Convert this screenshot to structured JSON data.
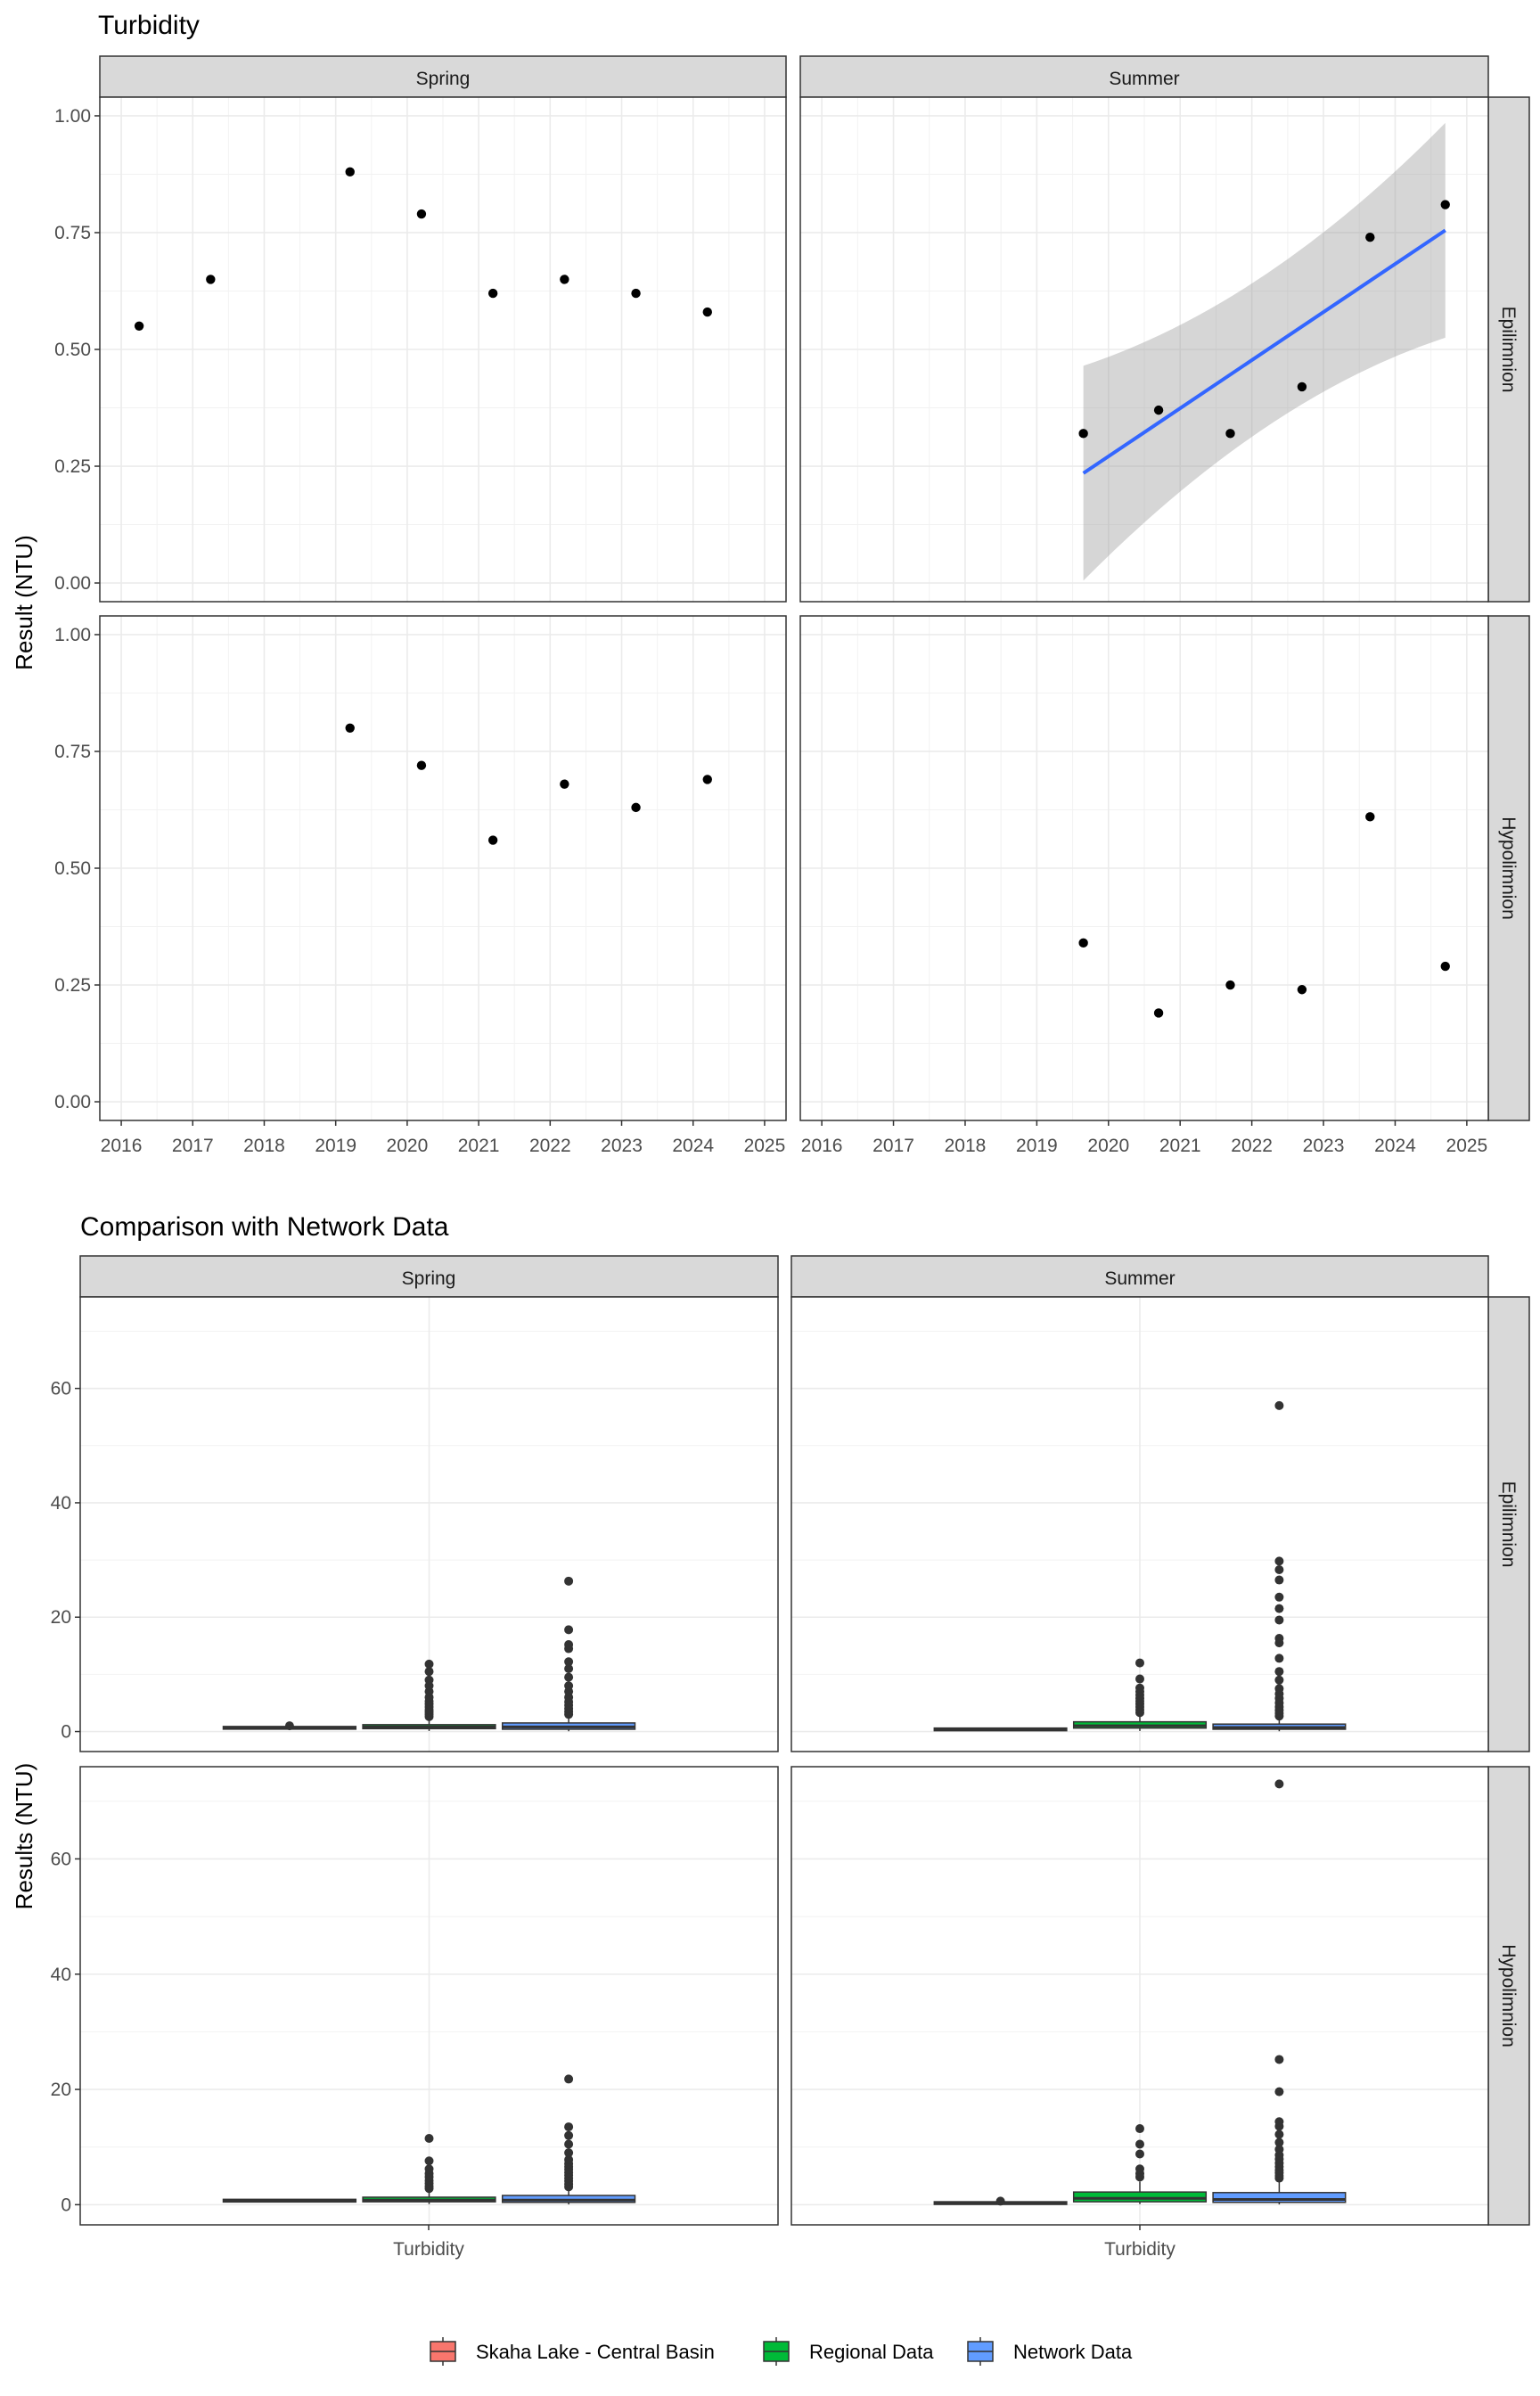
{
  "chart_data": [
    {
      "type": "scatter",
      "title": "Turbidity",
      "ylabel": "Result (NTU)",
      "xlabel": "",
      "xlim": [
        2015.7,
        2025.3
      ],
      "ylim": [
        -0.04,
        1.04
      ],
      "x_ticks": [
        "2016",
        "2017",
        "2018",
        "2019",
        "2020",
        "2021",
        "2022",
        "2023",
        "2024",
        "2025"
      ],
      "y_ticks": [
        "0.00",
        "0.25",
        "0.50",
        "0.75",
        "1.00"
      ],
      "col_facets": [
        "Spring",
        "Summer"
      ],
      "row_facets": [
        "Epilimnion",
        "Hypolimnion"
      ],
      "panels": [
        {
          "col": "Spring",
          "row": "Epilimnion",
          "x": [
            2016.25,
            2017.25,
            2019.2,
            2020.2,
            2021.2,
            2022.2,
            2023.2,
            2024.2
          ],
          "y": [
            0.55,
            0.65,
            0.88,
            0.79,
            0.62,
            0.65,
            0.62,
            0.58
          ]
        },
        {
          "col": "Summer",
          "row": "Epilimnion",
          "x": [
            2019.65,
            2020.7,
            2021.7,
            2022.7,
            2023.65,
            2024.7
          ],
          "y": [
            0.32,
            0.37,
            0.32,
            0.42,
            0.74,
            0.81
          ],
          "trend": {
            "x": [
              2019.65,
              2024.7
            ],
            "y": [
              0.235,
              0.755
            ],
            "ci_lower": [
              0.005,
              0.525
            ],
            "ci_upper": [
              0.465,
              0.985
            ],
            "ci_mid_x": 2022.2,
            "ci_mid_lower": 0.43,
            "ci_mid_upper": 0.565
          }
        },
        {
          "col": "Spring",
          "row": "Hypolimnion",
          "x": [
            2019.2,
            2020.2,
            2021.2,
            2022.2,
            2023.2,
            2024.2
          ],
          "y": [
            0.8,
            0.72,
            0.56,
            0.68,
            0.63,
            0.69
          ]
        },
        {
          "col": "Summer",
          "row": "Hypolimnion",
          "x": [
            2019.65,
            2020.7,
            2021.7,
            2022.7,
            2023.65,
            2024.7
          ],
          "y": [
            0.34,
            0.19,
            0.25,
            0.24,
            0.61,
            0.29
          ]
        }
      ]
    },
    {
      "type": "box",
      "title": "Comparison with Network Data",
      "ylabel": "Results (NTU)",
      "x_category": "Turbidity",
      "ylim": [
        -3.5,
        76
      ],
      "y_ticks": [
        "0",
        "20",
        "40",
        "60"
      ],
      "col_facets": [
        "Spring",
        "Summer"
      ],
      "row_facets": [
        "Epilimnion",
        "Hypolimnion"
      ],
      "legend": {
        "position": "bottom",
        "entries": [
          {
            "name": "Skaha Lake - Central Basin",
            "color": "#F8766D"
          },
          {
            "name": "Regional Data",
            "color": "#00BA38"
          },
          {
            "name": "Network Data",
            "color": "#619CFF"
          }
        ]
      },
      "panels": [
        {
          "col": "Spring",
          "row": "Epilimnion",
          "groups": [
            {
              "series": "Skaha Lake - Central Basin",
              "q1": 0.5,
              "median": 0.65,
              "q3": 0.8,
              "whisker_low": 0.5,
              "whisker_high": 0.9,
              "outliers": [
                1.0
              ]
            },
            {
              "series": "Regional Data",
              "q1": 0.5,
              "median": 0.8,
              "q3": 1.2,
              "whisker_low": 0.1,
              "whisker_high": 2.3,
              "outliers": [
                2.6,
                3.0,
                3.4,
                3.8,
                4.3,
                4.8,
                5.3,
                6.0,
                7.0,
                8.0,
                9.0,
                10.5,
                11.8
              ]
            },
            {
              "series": "Network Data",
              "q1": 0.4,
              "median": 0.8,
              "q3": 1.5,
              "whisker_low": 0.05,
              "whisker_high": 2.6,
              "outliers": [
                3.0,
                3.5,
                4.0,
                4.6,
                5.2,
                6.0,
                7.0,
                8.0,
                9.5,
                11.0,
                12.2,
                14.5,
                15.2,
                17.8,
                26.3
              ]
            }
          ]
        },
        {
          "col": "Summer",
          "row": "Epilimnion",
          "groups": [
            {
              "series": "Skaha Lake - Central Basin",
              "q1": 0.3,
              "median": 0.35,
              "q3": 0.45,
              "whisker_low": 0.3,
              "whisker_high": 0.5,
              "outliers": []
            },
            {
              "series": "Regional Data",
              "q1": 0.6,
              "median": 1.0,
              "q3": 1.7,
              "whisker_low": 0.1,
              "whisker_high": 2.8,
              "outliers": [
                3.3,
                3.8,
                4.3,
                4.8,
                5.3,
                5.8,
                6.4,
                7.0,
                7.6,
                9.2,
                12.0
              ]
            },
            {
              "series": "Network Data",
              "q1": 0.4,
              "median": 0.7,
              "q3": 1.3,
              "whisker_low": 0.05,
              "whisker_high": 2.3,
              "outliers": [
                2.7,
                3.2,
                3.7,
                4.3,
                5.0,
                5.8,
                6.6,
                7.5,
                9.0,
                10.5,
                12.8,
                15.5,
                16.3,
                19.5,
                21.5,
                23.5,
                26.5,
                28.3,
                29.8,
                57.0
              ]
            }
          ]
        },
        {
          "col": "Spring",
          "row": "Hypolimnion",
          "groups": [
            {
              "series": "Skaha Lake - Central Basin",
              "q1": 0.6,
              "median": 0.7,
              "q3": 0.8,
              "whisker_low": 0.56,
              "whisker_high": 0.8,
              "outliers": []
            },
            {
              "series": "Regional Data",
              "q1": 0.5,
              "median": 0.8,
              "q3": 1.3,
              "whisker_low": 0.1,
              "whisker_high": 2.4,
              "outliers": [
                2.8,
                3.2,
                3.7,
                4.2,
                4.8,
                5.4,
                6.2,
                7.6,
                11.5
              ]
            },
            {
              "series": "Network Data",
              "q1": 0.4,
              "median": 0.8,
              "q3": 1.6,
              "whisker_low": 0.05,
              "whisker_high": 2.7,
              "outliers": [
                3.1,
                3.6,
                4.1,
                4.6,
                5.1,
                5.6,
                6.1,
                6.6,
                7.1,
                7.8,
                9.0,
                10.5,
                12.0,
                13.5,
                21.8
              ]
            }
          ]
        },
        {
          "col": "Summer",
          "row": "Hypolimnion",
          "groups": [
            {
              "series": "Skaha Lake - Central Basin",
              "q1": 0.22,
              "median": 0.28,
              "q3": 0.34,
              "whisker_low": 0.19,
              "whisker_high": 0.4,
              "outliers": [
                0.61
              ]
            },
            {
              "series": "Regional Data",
              "q1": 0.5,
              "median": 1.1,
              "q3": 2.2,
              "whisker_low": 0.1,
              "whisker_high": 4.0,
              "outliers": [
                4.8,
                5.4,
                6.2,
                8.8,
                10.5,
                13.2
              ]
            },
            {
              "series": "Network Data",
              "q1": 0.4,
              "median": 0.9,
              "q3": 2.1,
              "whisker_low": 0.05,
              "whisker_high": 4.2,
              "outliers": [
                4.6,
                5.0,
                5.5,
                6.0,
                6.6,
                7.2,
                7.9,
                8.6,
                9.6,
                10.8,
                12.2,
                13.6,
                14.4,
                19.6,
                25.2,
                73.0
              ]
            }
          ]
        }
      ]
    }
  ]
}
